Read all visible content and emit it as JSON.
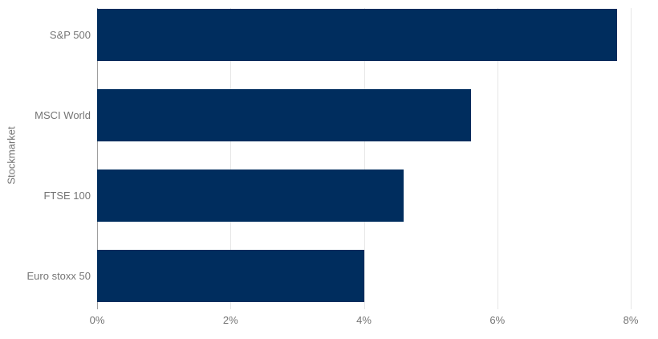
{
  "chart_data": {
    "type": "bar",
    "orientation": "horizontal",
    "title": "",
    "xlabel": "",
    "ylabel": "Stockmarket",
    "categories": [
      "S&P 500",
      "MSCI World",
      "FTSE 100",
      "Euro stoxx 50"
    ],
    "values": [
      7.8,
      5.6,
      4.6,
      4.0
    ],
    "value_unit": "%",
    "xlim": [
      0,
      8
    ],
    "x_ticks": [
      "0%",
      "2%",
      "4%",
      "6%",
      "8%"
    ],
    "x_tick_values": [
      0,
      2,
      4,
      6,
      8
    ],
    "grid": true,
    "legend_position": "none",
    "colors": {
      "bar": "#002d5e",
      "gridline": "#e6e6e6",
      "axis_line": "#9e9e9e",
      "label_text": "#757575",
      "background": "#ffffff"
    }
  }
}
